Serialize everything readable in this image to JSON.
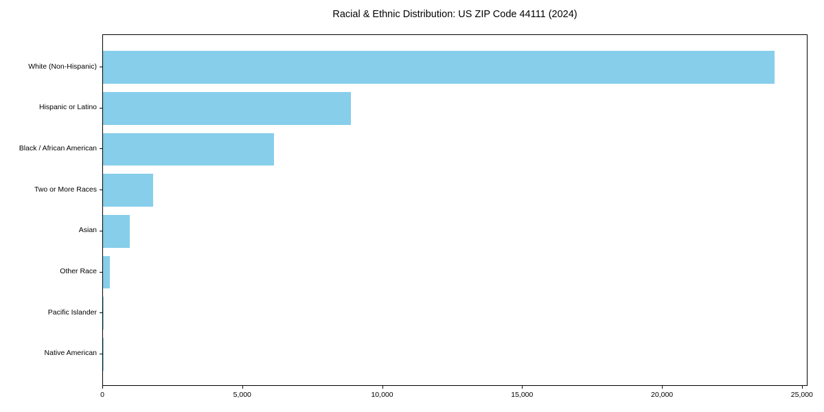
{
  "chart_data": {
    "type": "bar",
    "orientation": "horizontal",
    "title": "Racial & Ethnic Distribution: US ZIP Code 44111 (2024)",
    "categories": [
      "White (Non-Hispanic)",
      "Hispanic or Latino",
      "Black / African American",
      "Two or More Races",
      "Asian",
      "Other Race",
      "Pacific Islander",
      "Native American"
    ],
    "values": [
      24000,
      8850,
      6100,
      1800,
      950,
      250,
      25,
      10
    ],
    "xlabel": "",
    "ylabel": "",
    "xlim": [
      0,
      25200
    ],
    "xticks": {
      "values": [
        0,
        5000,
        10000,
        15000,
        20000,
        25000
      ],
      "labels": [
        "0",
        "5,000",
        "10,000",
        "15,000",
        "20,000",
        "25,000"
      ]
    },
    "bar_color": "#87CEEB",
    "axis_color": "#000000",
    "text_color": "#000000",
    "background_color": "#ffffff",
    "grid": false,
    "legend": null
  }
}
